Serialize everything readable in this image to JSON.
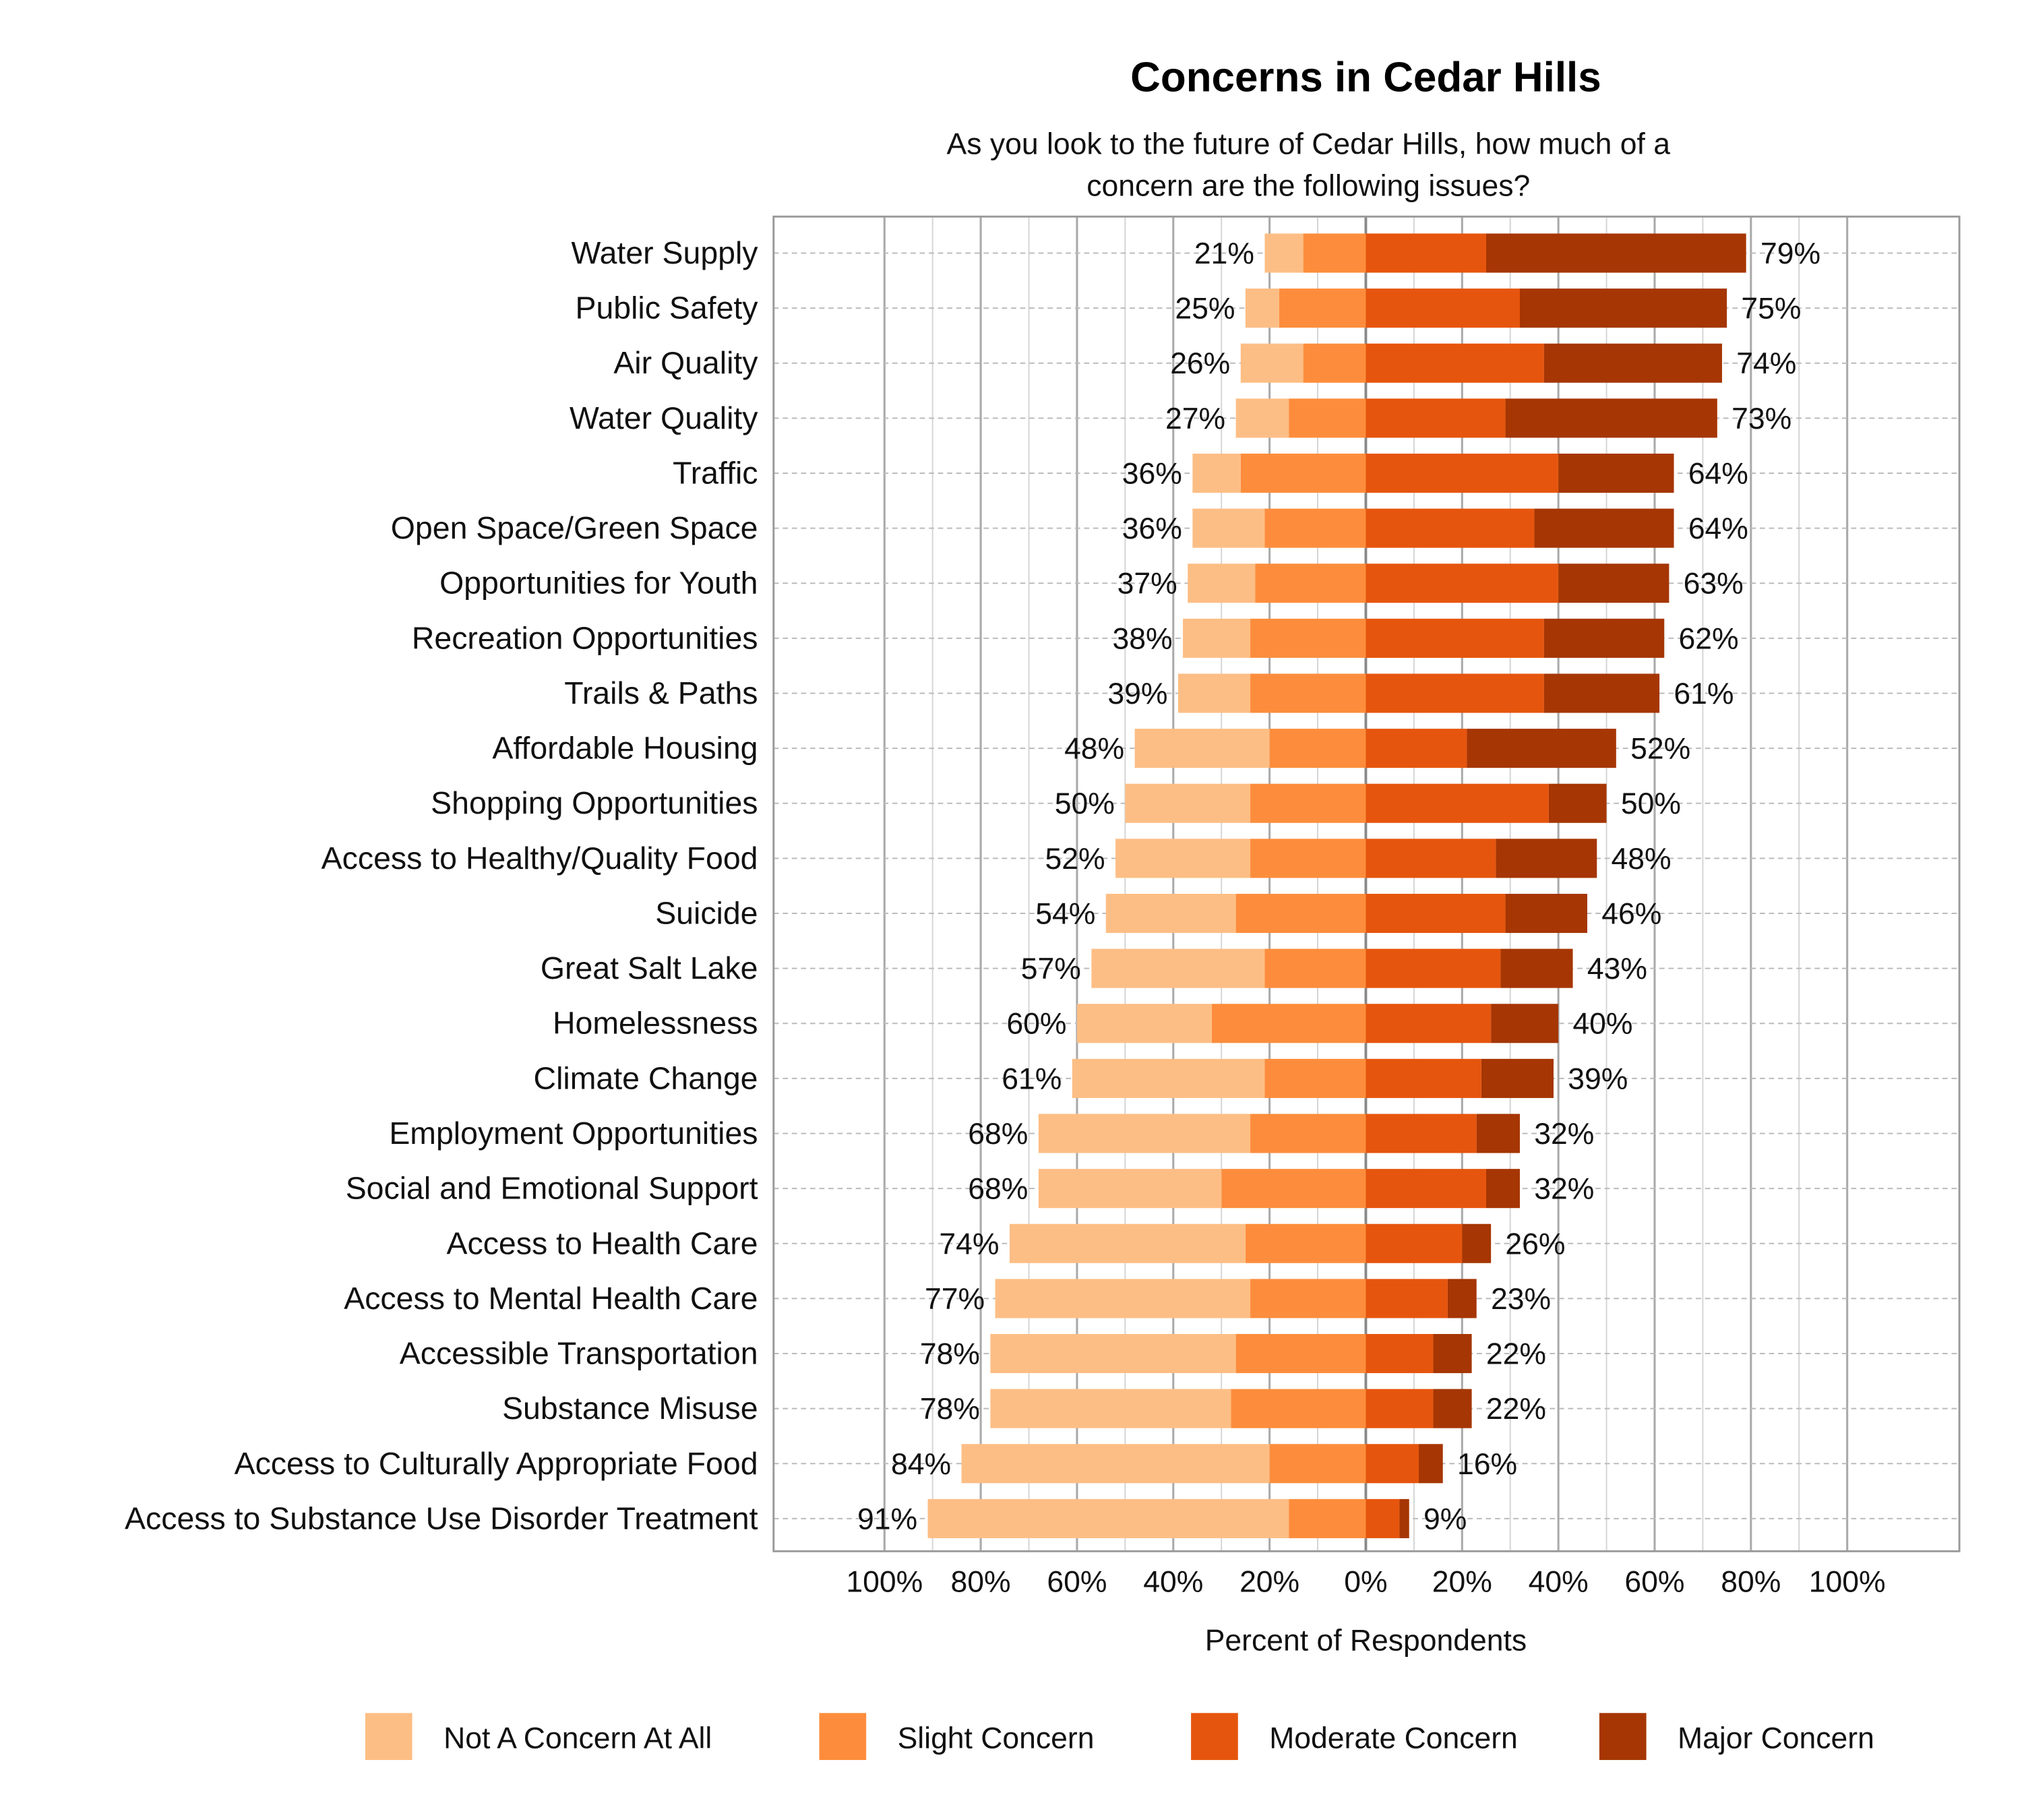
{
  "chart_data": {
    "type": "bar",
    "orientation": "horizontal-diverging-stacked",
    "title": "Concerns in Cedar Hills",
    "subtitle_lines": [
      "As you look to the future of Cedar Hills, how much of a",
      "concern are the following issues?"
    ],
    "xlabel": "Percent of Respondents",
    "xlim": [
      -100,
      100
    ],
    "x_tick_labels": [
      "100%",
      "80%",
      "60%",
      "40%",
      "20%",
      "0%",
      "20%",
      "40%",
      "60%",
      "80%",
      "100%"
    ],
    "x_ticks": [
      -100,
      -80,
      -60,
      -40,
      -20,
      0,
      20,
      40,
      60,
      80,
      100
    ],
    "grid": true,
    "legend_position": "bottom",
    "categories": [
      "Water Supply",
      "Public Safety",
      "Air Quality",
      "Water Quality",
      "Traffic",
      "Open Space/Green Space",
      "Opportunities for Youth",
      "Recreation Opportunities",
      "Trails & Paths",
      "Affordable Housing",
      "Shopping Opportunities",
      "Access to Healthy/Quality Food",
      "Suicide",
      "Great Salt Lake",
      "Homelessness",
      "Climate Change",
      "Employment Opportunities",
      "Social and Emotional Support",
      "Access to Health Care",
      "Access to Mental Health Care",
      "Accessible Transportation",
      "Substance Misuse",
      "Access to Culturally Appropriate Food",
      "Access to Substance Use Disorder Treatment"
    ],
    "series": [
      {
        "name": "Not A Concern At All",
        "side": "left",
        "color": "#fdbe85",
        "values": [
          8,
          7,
          13,
          11,
          10,
          15,
          14,
          14,
          15,
          28,
          26,
          28,
          27,
          36,
          28,
          40,
          44,
          38,
          49,
          53,
          51,
          50,
          64,
          75
        ]
      },
      {
        "name": "Slight Concern",
        "side": "left",
        "color": "#fd8d3c",
        "values": [
          13,
          18,
          13,
          16,
          26,
          21,
          23,
          24,
          24,
          20,
          24,
          24,
          27,
          21,
          32,
          21,
          24,
          30,
          25,
          24,
          27,
          28,
          20,
          16
        ]
      },
      {
        "name": "Moderate Concern",
        "side": "right",
        "color": "#e6550d",
        "values": [
          25,
          32,
          37,
          29,
          40,
          35,
          40,
          37,
          37,
          21,
          38,
          27,
          29,
          28,
          26,
          24,
          23,
          25,
          20,
          17,
          14,
          14,
          11,
          7
        ]
      },
      {
        "name": "Major Concern",
        "side": "right",
        "color": "#a63603",
        "values": [
          54,
          43,
          37,
          44,
          24,
          29,
          23,
          25,
          24,
          31,
          12,
          21,
          17,
          15,
          14,
          15,
          9,
          7,
          6,
          6,
          8,
          8,
          5,
          2
        ]
      }
    ],
    "left_total_labels": [
      "21%",
      "25%",
      "26%",
      "27%",
      "36%",
      "36%",
      "37%",
      "38%",
      "39%",
      "48%",
      "50%",
      "52%",
      "54%",
      "57%",
      "60%",
      "61%",
      "68%",
      "68%",
      "74%",
      "77%",
      "78%",
      "78%",
      "84%",
      "91%"
    ],
    "right_total_labels": [
      "79%",
      "75%",
      "74%",
      "73%",
      "64%",
      "64%",
      "63%",
      "62%",
      "61%",
      "52%",
      "50%",
      "48%",
      "46%",
      "43%",
      "40%",
      "39%",
      "32%",
      "32%",
      "26%",
      "23%",
      "22%",
      "22%",
      "16%",
      "9%"
    ]
  }
}
